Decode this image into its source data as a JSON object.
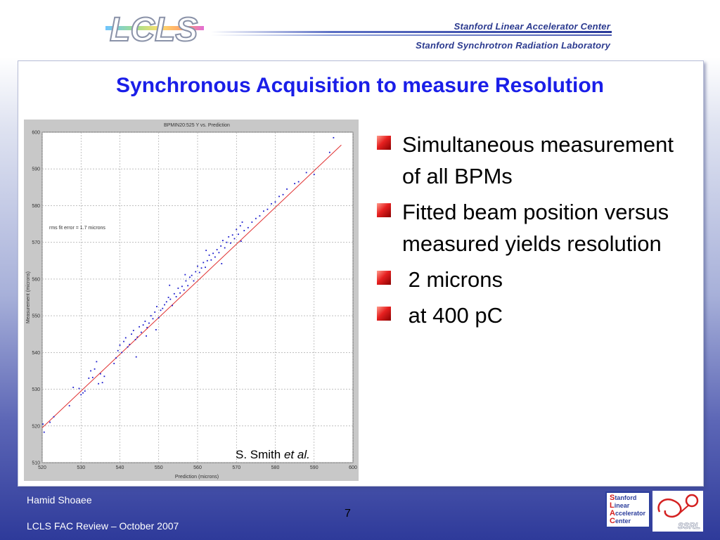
{
  "header": {
    "logo_text": "LCLS",
    "org_line1": "Stanford Linear Accelerator Center",
    "org_line2": "Stanford Synchrotron Radiation Laboratory"
  },
  "slide": {
    "title": "Synchronous Acquisition to measure Resolution",
    "bullets": [
      "Simultaneous measurement of all BPMs",
      "Fitted beam position versus measured yields resolution",
      " 2 microns",
      " at 400 pC"
    ],
    "credit_name": "S. Smith ",
    "credit_etal": "et al."
  },
  "footer": {
    "author": "Hamid Shoaee",
    "event": "LCLS FAC Review – October 2007",
    "page_number": "7",
    "slac_logo_lines": [
      "tanford",
      "inear",
      "ccelerator",
      "enter"
    ],
    "slac_logo_caps": [
      "S",
      "L",
      "A",
      "C"
    ],
    "ssrl_logo_text": "SSRL"
  },
  "colors": {
    "title": "#1a1ee8",
    "bullet_marker": "#e62020",
    "fit_line": "#e03030",
    "points": "#1a1acc"
  },
  "chart_data": {
    "type": "scatter",
    "title": "BPMIN20:525 Y vs. Prediction",
    "xlabel": "Prediction (microns)",
    "ylabel": "Measurement (microns)",
    "annotation": "rms fit error = 1.7 microns",
    "xlim": [
      520,
      600
    ],
    "ylim": [
      510,
      600
    ],
    "xticks": [
      520,
      530,
      540,
      550,
      560,
      570,
      580,
      590,
      600
    ],
    "yticks": [
      510,
      520,
      530,
      540,
      550,
      560,
      570,
      580,
      590,
      600
    ],
    "grid": true,
    "fit_line": {
      "x": [
        520,
        597
      ],
      "y": [
        519.5,
        596.5
      ]
    },
    "points": [
      [
        520.2,
        520.5
      ],
      [
        520.5,
        518.3
      ],
      [
        522,
        521
      ],
      [
        523,
        522.5
      ],
      [
        527,
        525.5
      ],
      [
        528,
        530.5
      ],
      [
        529.5,
        530.2
      ],
      [
        530,
        528.5
      ],
      [
        530.5,
        529
      ],
      [
        531,
        529.5
      ],
      [
        532,
        533
      ],
      [
        532.5,
        535
      ],
      [
        533,
        533.2
      ],
      [
        533.5,
        535.5
      ],
      [
        534,
        537.5
      ],
      [
        534.5,
        531.5
      ],
      [
        535,
        534.2
      ],
      [
        535.5,
        531.8
      ],
      [
        536,
        533.5
      ],
      [
        538.5,
        537
      ],
      [
        539,
        538.5
      ],
      [
        539.5,
        540.5
      ],
      [
        540,
        542
      ],
      [
        540.5,
        540
      ],
      [
        541,
        543
      ],
      [
        541.5,
        544
      ],
      [
        542,
        541.5
      ],
      [
        542.5,
        542.2
      ],
      [
        543,
        545
      ],
      [
        543.5,
        546
      ],
      [
        544,
        543.5
      ],
      [
        544.5,
        544.2
      ],
      [
        545,
        547
      ],
      [
        545.5,
        545.5
      ],
      [
        546,
        547.5
      ],
      [
        546.5,
        548.5
      ],
      [
        547,
        546.8
      ],
      [
        547.5,
        548
      ],
      [
        548,
        550
      ],
      [
        548.5,
        549.2
      ],
      [
        549,
        551
      ],
      [
        549.5,
        552.5
      ],
      [
        550,
        549.5
      ],
      [
        550.5,
        551.5
      ],
      [
        551,
        552
      ],
      [
        551.5,
        553
      ],
      [
        552,
        553.8
      ],
      [
        552.5,
        555
      ],
      [
        553,
        554.5
      ],
      [
        553.5,
        552.8
      ],
      [
        554,
        556
      ],
      [
        554.5,
        555.2
      ],
      [
        555,
        557.5
      ],
      [
        555.5,
        556.2
      ],
      [
        556,
        558
      ],
      [
        556.5,
        557
      ],
      [
        557,
        559.5
      ],
      [
        557.5,
        558.2
      ],
      [
        558,
        560.5
      ],
      [
        558.5,
        561
      ],
      [
        559,
        559.5
      ],
      [
        559.5,
        562
      ],
      [
        560,
        563.5
      ],
      [
        560.5,
        561.8
      ],
      [
        561,
        563
      ],
      [
        561.5,
        564.5
      ],
      [
        562,
        563.2
      ],
      [
        562.5,
        565
      ],
      [
        563,
        566.5
      ],
      [
        563.5,
        565.2
      ],
      [
        564,
        567
      ],
      [
        564.5,
        566
      ],
      [
        565,
        568
      ],
      [
        565.5,
        567.2
      ],
      [
        566,
        569
      ],
      [
        566.5,
        570.5
      ],
      [
        567,
        568.5
      ],
      [
        567.5,
        570
      ],
      [
        568,
        571.5
      ],
      [
        568.5,
        569.8
      ],
      [
        569,
        572
      ],
      [
        569.5,
        571
      ],
      [
        570,
        573.5
      ],
      [
        570.5,
        572.2
      ],
      [
        571,
        574.5
      ],
      [
        571.5,
        575.5
      ],
      [
        572,
        573.2
      ],
      [
        573,
        574
      ],
      [
        574,
        575.5
      ],
      [
        575,
        576.5
      ],
      [
        576,
        577.2
      ],
      [
        577,
        578.5
      ],
      [
        578,
        579
      ],
      [
        579,
        580.5
      ],
      [
        580,
        581
      ],
      [
        581,
        582.5
      ],
      [
        582,
        583
      ],
      [
        583,
        584.5
      ],
      [
        585,
        586
      ],
      [
        586,
        586.5
      ],
      [
        588,
        589
      ],
      [
        590,
        588.5
      ],
      [
        594,
        594.5
      ],
      [
        595,
        598.5
      ],
      [
        546.8,
        544.5
      ],
      [
        549.3,
        546.2
      ],
      [
        556.8,
        561.2
      ],
      [
        562.2,
        567.8
      ],
      [
        544.2,
        538.8
      ],
      [
        552.8,
        558.3
      ],
      [
        566.2,
        564.2
      ],
      [
        571.2,
        570.3
      ]
    ]
  }
}
